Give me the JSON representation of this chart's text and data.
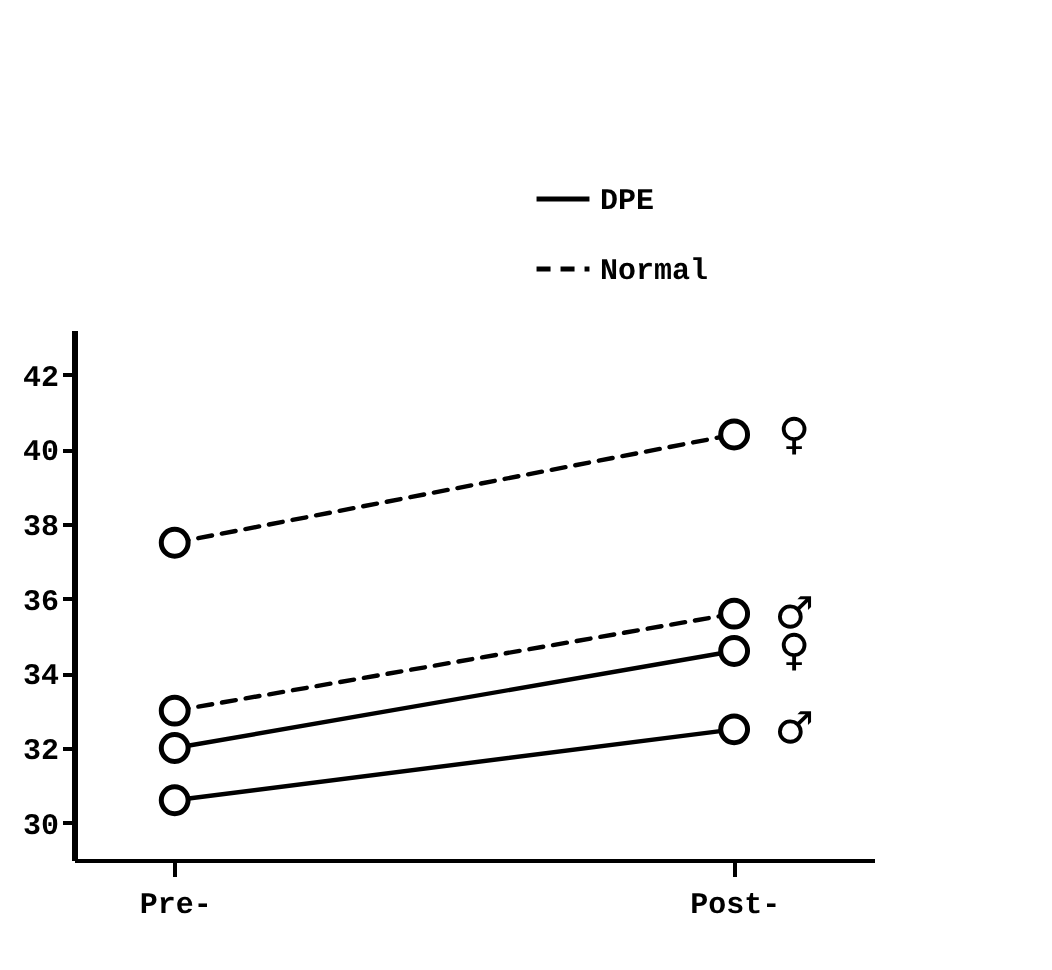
{
  "chart_data": {
    "type": "line",
    "categories": [
      "Pre-",
      "Post-"
    ],
    "series": [
      {
        "name": "DPE",
        "color": "#000000",
        "line_style": "solid",
        "values": [
          30.6,
          32.5
        ]
      },
      {
        "color": "#000000",
        "line_style": "solid",
        "values": [
          32.0,
          34.6
        ]
      },
      {
        "name": "Normal",
        "color": "#000000",
        "line_style": "dashed",
        "values": [
          33.0,
          35.6
        ]
      },
      {
        "color": "#000000",
        "line_style": "dashed",
        "values": [
          37.5,
          40.4
        ]
      }
    ],
    "ylim": [
      29,
      43.2
    ],
    "yticks": [
      30,
      32,
      34,
      36,
      38,
      40,
      42
    ],
    "annotations": [
      {
        "text": "♀",
        "x": "Post-",
        "y": 40.4
      },
      {
        "text": "♂",
        "x": "Post-",
        "y": 35.6
      },
      {
        "text": "♀",
        "x": "Post-",
        "y": 34.6
      },
      {
        "text": "♂",
        "x": "Post-",
        "y": 32.5
      }
    ],
    "marker": "circle",
    "grid": false,
    "legend": "top right"
  }
}
